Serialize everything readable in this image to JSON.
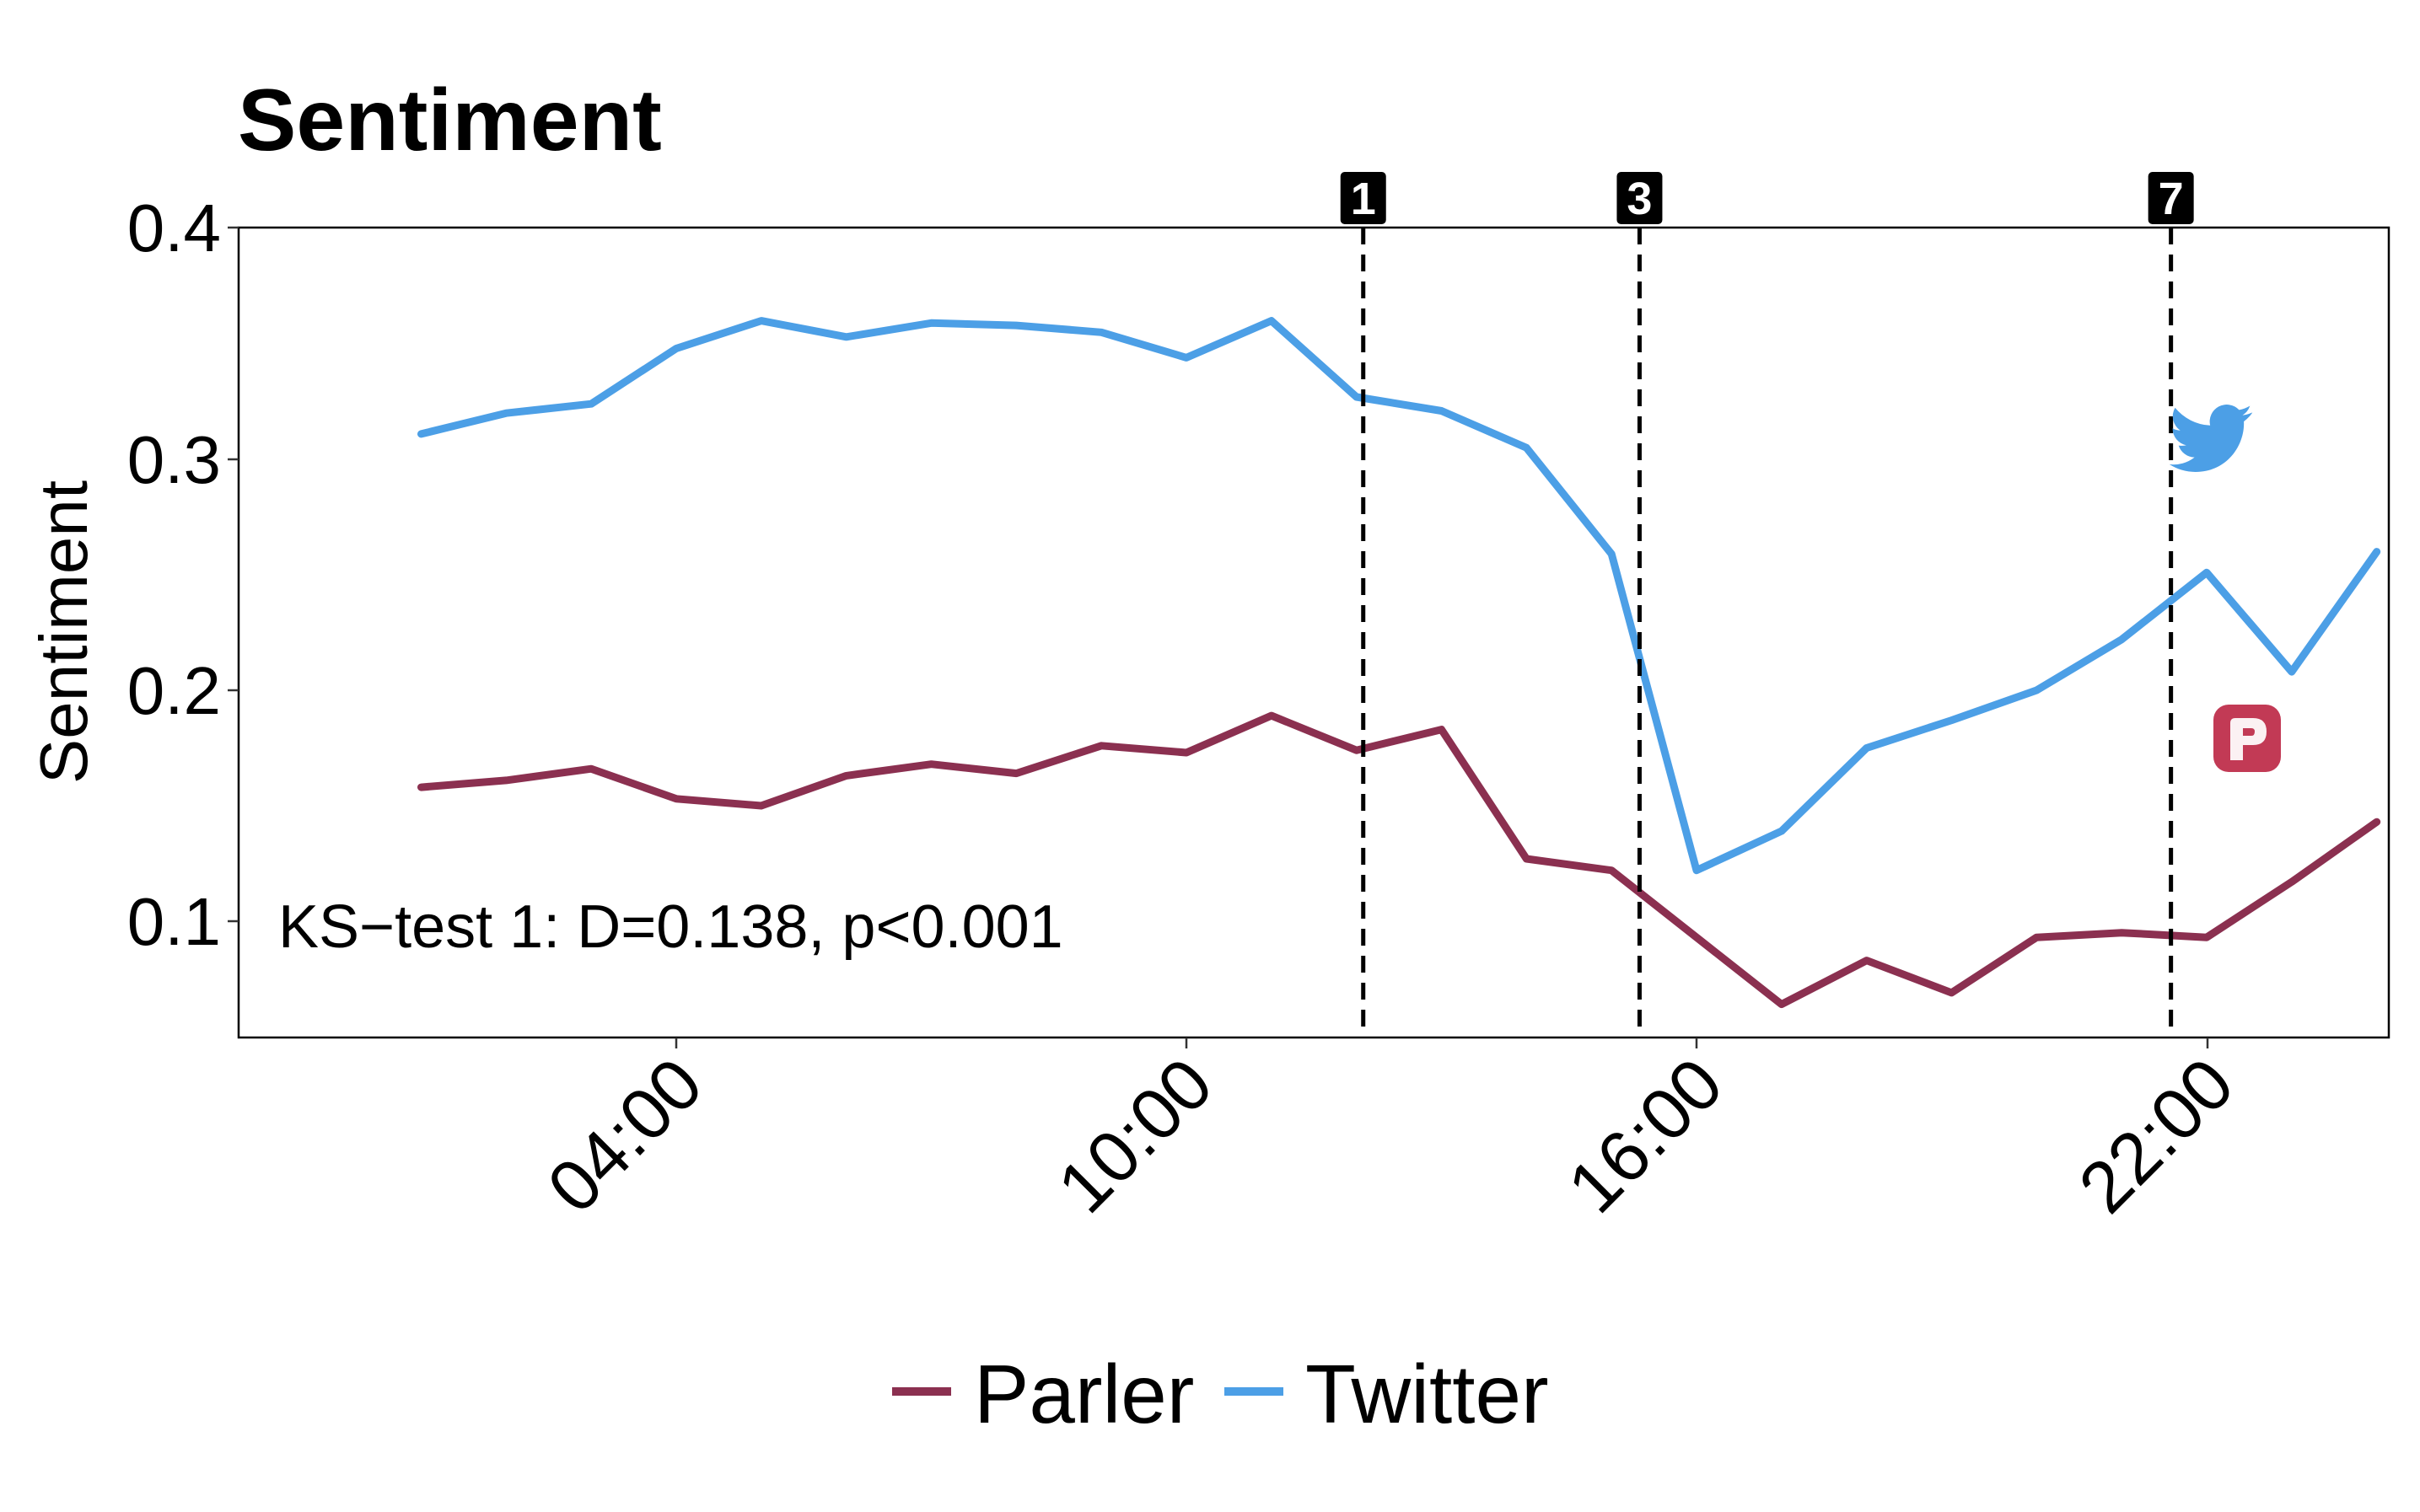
{
  "chart_data": {
    "type": "line",
    "title": "Sentiment",
    "xlabel": "",
    "ylabel": "Sentiment",
    "x_ticks": [
      "04:00",
      "10:00",
      "16:00",
      "22:00"
    ],
    "y_ticks": [
      "0.1",
      "0.2",
      "0.3",
      "0.4"
    ],
    "ylim": [
      0.05,
      0.4
    ],
    "x_hours": [
      1,
      2,
      3,
      4,
      5,
      6,
      7,
      8,
      9,
      10,
      11,
      12,
      13,
      14,
      15,
      16,
      17,
      18,
      19,
      20,
      21,
      22,
      23,
      24
    ],
    "grid": false,
    "legend_position": "bottom",
    "series": [
      {
        "name": "Parler",
        "color": "#8B3050",
        "values": [
          0.158,
          0.161,
          0.166,
          0.153,
          0.15,
          0.163,
          0.168,
          0.164,
          0.176,
          0.173,
          0.189,
          0.174,
          0.183,
          0.127,
          0.122,
          0.093,
          0.064,
          0.083,
          0.069,
          0.093,
          0.095,
          0.093,
          0.117,
          0.143
        ]
      },
      {
        "name": "Twitter",
        "color": "#4C9FE6",
        "values": [
          0.311,
          0.32,
          0.324,
          0.348,
          0.36,
          0.353,
          0.359,
          0.358,
          0.355,
          0.344,
          0.36,
          0.327,
          0.321,
          0.305,
          0.259,
          0.122,
          0.139,
          0.175,
          0.187,
          0.2,
          0.222,
          0.251,
          0.208,
          0.26
        ]
      }
    ],
    "events": [
      {
        "label": "1",
        "hour": 12.08
      },
      {
        "label": "3",
        "hour": 15.33
      },
      {
        "label": "7",
        "hour": 21.58
      }
    ],
    "annotation": "KS−test 1: D=0.138, p<0.001",
    "icons": [
      "twitter-bird-icon",
      "parler-logo-icon"
    ]
  }
}
